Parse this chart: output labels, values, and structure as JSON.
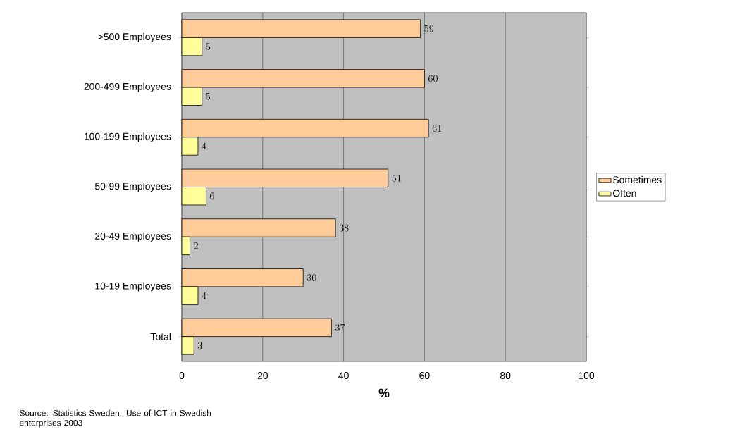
{
  "chart_data": {
    "type": "bar",
    "orientation": "horizontal",
    "categories": [
      ">500 Employees",
      "200-499 Employees",
      "100-199 Employees",
      "50-99 Employees",
      "20-49 Employees",
      "10-19 Employees",
      "Total"
    ],
    "series": [
      {
        "name": "Sometimes",
        "color": "#ffcc99",
        "values": [
          59,
          60,
          61,
          51,
          38,
          30,
          37
        ]
      },
      {
        "name": "Often",
        "color": "#ffff99",
        "values": [
          5,
          5,
          4,
          6,
          2,
          4,
          3
        ]
      }
    ],
    "xlabel": "**%**",
    "xlim": [
      0,
      100
    ],
    "xticks": [
      0,
      20,
      40,
      60,
      80,
      100
    ],
    "grid": "x",
    "legend": "right",
    "data_labels": true,
    "annotations": [
      "Source: Statistics Sweden. Use of ICT in Swedish enterprises 2003"
    ]
  }
}
